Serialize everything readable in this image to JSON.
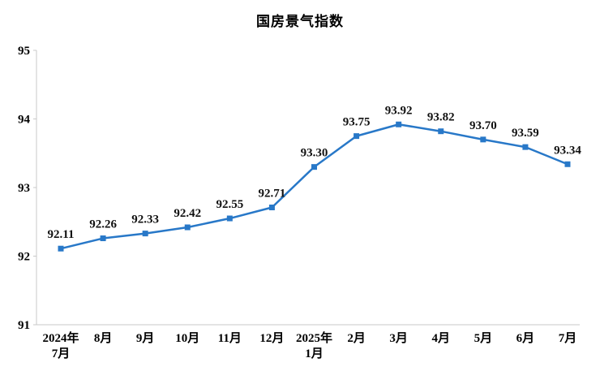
{
  "page": {
    "title": "国房景气指数"
  },
  "chart_data": {
    "type": "line",
    "title": "国房景气指数",
    "xlabel": "",
    "ylabel": "",
    "categories": [
      [
        "2024年",
        "7月"
      ],
      [
        "8月"
      ],
      [
        "9月"
      ],
      [
        "10月"
      ],
      [
        "11月"
      ],
      [
        "12月"
      ],
      [
        "2025年",
        "1月"
      ],
      [
        "2月"
      ],
      [
        "3月"
      ],
      [
        "4月"
      ],
      [
        "5月"
      ],
      [
        "6月"
      ],
      [
        "7月"
      ]
    ],
    "values": [
      92.11,
      92.26,
      92.33,
      92.42,
      92.55,
      92.71,
      93.3,
      93.75,
      93.92,
      93.82,
      93.7,
      93.59,
      93.34
    ],
    "value_labels": [
      "92.11",
      "92.26",
      "92.33",
      "92.42",
      "92.55",
      "92.71",
      "93.30",
      "93.75",
      "93.92",
      "93.82",
      "93.70",
      "93.59",
      "93.34"
    ],
    "ylim": [
      91,
      95
    ],
    "yticks": [
      91,
      92,
      93,
      94,
      95
    ],
    "grid": false,
    "legend": "none",
    "marker_shape": "square",
    "colors": {
      "line": "#2878c8",
      "marker": "#2878c8",
      "value_label": "#111111",
      "axis": "#c9c9c9",
      "text": "#000000",
      "background": "#ffffff"
    }
  }
}
